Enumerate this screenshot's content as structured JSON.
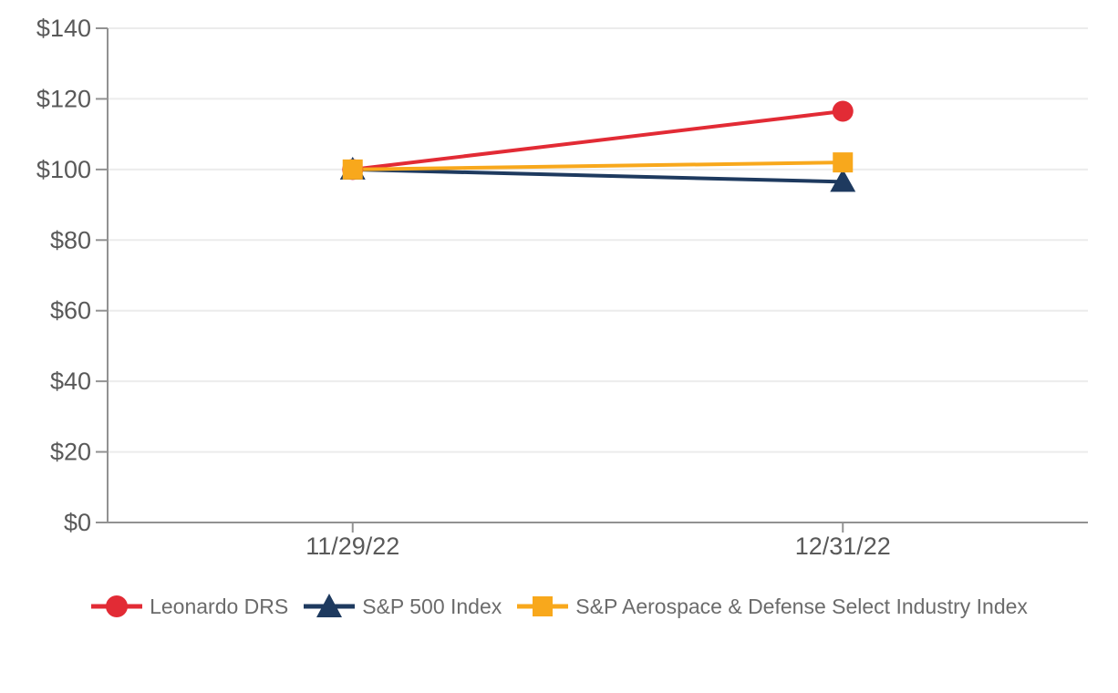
{
  "chart_data": {
    "type": "line",
    "title": "",
    "xlabel": "",
    "ylabel": "",
    "categories": [
      "11/29/22",
      "12/31/22"
    ],
    "series": [
      {
        "name": "Leonardo DRS",
        "marker": "circle",
        "color": "#E22B35",
        "values": [
          100,
          116.5
        ]
      },
      {
        "name": "S&P 500 Index",
        "marker": "triangle",
        "color": "#1E3A5F",
        "values": [
          100,
          96.5
        ]
      },
      {
        "name": "S&P Aerospace & Defense Select Industry Index",
        "marker": "square",
        "color": "#F8A81C",
        "values": [
          100,
          102
        ]
      }
    ],
    "ylim": [
      0,
      140
    ],
    "yticks": [
      0,
      20,
      40,
      60,
      80,
      100,
      120,
      140
    ],
    "ytick_labels": [
      "$0",
      "$20",
      "$40",
      "$60",
      "$80",
      "$100",
      "$120",
      "$140"
    ],
    "grid": true,
    "legend_position": "bottom",
    "axis_color": "#929292",
    "grid_color": "#ECECEC",
    "tick_label_color": "#595959",
    "legend_text_color": "#6B6B6B"
  }
}
